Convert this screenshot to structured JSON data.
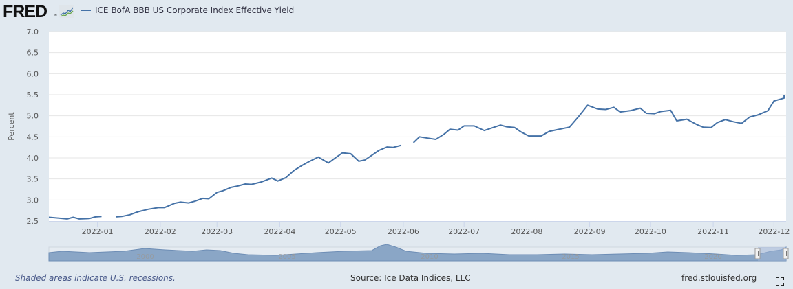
{
  "header": {
    "logo_text": "FRED",
    "logo_reg": "®",
    "logo_icon": "line-chart-icon",
    "series_label": "ICE BofA BBB US Corporate Index Effective Yield",
    "series_color": "#4572a7"
  },
  "footer": {
    "recession_note": "Shaded areas indicate U.S. recessions.",
    "source": "Source: Ice Data Indices, LLC",
    "site": "fred.stlouisfed.org",
    "fullscreen_icon": "fullscreen-icon"
  },
  "navigator": {
    "year_labels": [
      "2000",
      "2005",
      "2010",
      "2015",
      "2020"
    ],
    "handle_icon": "drag-handle-icon"
  },
  "chart_data": {
    "type": "line",
    "title": "ICE BofA BBB US Corporate Index Effective Yield",
    "xlabel": "",
    "ylabel": "Percent",
    "ylim": [
      2.5,
      7.0
    ],
    "yticks": [
      "2.5",
      "3.0",
      "3.5",
      "4.0",
      "4.5",
      "5.0",
      "5.5",
      "6.0",
      "6.5",
      "7.0"
    ],
    "xticks": [
      "2022-01",
      "2022-02",
      "2022-03",
      "2022-04",
      "2022-05",
      "2022-06",
      "2022-07",
      "2022-08",
      "2022-09",
      "2022-10",
      "2022-11",
      "2022-12"
    ],
    "grid": true,
    "legend_position": "top-left",
    "series": [
      {
        "name": "ICE BofA BBB US Corporate Index Effective Yield",
        "color": "#4572a7",
        "points": [
          [
            "2021-12-08",
            2.59
          ],
          [
            "2021-12-13",
            2.57
          ],
          [
            "2021-12-17",
            2.55
          ],
          [
            "2021-12-20",
            2.59
          ],
          [
            "2021-12-23",
            2.55
          ],
          [
            "2021-12-28",
            2.56
          ],
          [
            "2021-12-31",
            2.6
          ],
          [
            "2022-01-03",
            2.61
          ],
          null,
          [
            "2022-01-10",
            2.6
          ],
          [
            "2022-01-13",
            2.61
          ],
          [
            "2022-01-17",
            2.65
          ],
          [
            "2022-01-21",
            2.72
          ],
          [
            "2022-01-26",
            2.78
          ],
          [
            "2022-01-31",
            2.82
          ],
          [
            "2022-02-03",
            2.82
          ],
          [
            "2022-02-08",
            2.92
          ],
          [
            "2022-02-11",
            2.95
          ],
          [
            "2022-02-15",
            2.93
          ],
          [
            "2022-02-18",
            2.97
          ],
          [
            "2022-02-22",
            3.04
          ],
          [
            "2022-02-25",
            3.03
          ],
          [
            "2022-03-01",
            3.18
          ],
          [
            "2022-03-04",
            3.22
          ],
          [
            "2022-03-08",
            3.3
          ],
          [
            "2022-03-11",
            3.33
          ],
          [
            "2022-03-15",
            3.38
          ],
          [
            "2022-03-18",
            3.37
          ],
          [
            "2022-03-23",
            3.43
          ],
          [
            "2022-03-28",
            3.52
          ],
          [
            "2022-03-31",
            3.45
          ],
          [
            "2022-04-04",
            3.53
          ],
          [
            "2022-04-08",
            3.7
          ],
          [
            "2022-04-12",
            3.82
          ],
          [
            "2022-04-15",
            3.9
          ],
          [
            "2022-04-20",
            4.02
          ],
          [
            "2022-04-25",
            3.88
          ],
          [
            "2022-04-29",
            4.02
          ],
          [
            "2022-05-02",
            4.12
          ],
          [
            "2022-05-06",
            4.1
          ],
          [
            "2022-05-10",
            3.92
          ],
          [
            "2022-05-13",
            3.95
          ],
          [
            "2022-05-17",
            4.08
          ],
          [
            "2022-05-20",
            4.18
          ],
          [
            "2022-05-24",
            4.26
          ],
          [
            "2022-05-27",
            4.25
          ],
          [
            "2022-05-31",
            4.3
          ],
          null,
          [
            "2022-06-06",
            4.36
          ],
          [
            "2022-06-09",
            4.5
          ],
          [
            "2022-06-13",
            4.47
          ],
          [
            "2022-06-17",
            4.44
          ],
          [
            "2022-06-21",
            4.56
          ],
          [
            "2022-06-24",
            4.68
          ],
          [
            "2022-06-28",
            4.66
          ],
          [
            "2022-07-01",
            4.76
          ],
          [
            "2022-07-06",
            4.76
          ],
          [
            "2022-07-11",
            4.65
          ],
          [
            "2022-07-14",
            4.7
          ],
          [
            "2022-07-19",
            4.78
          ],
          [
            "2022-07-22",
            4.74
          ],
          [
            "2022-07-26",
            4.72
          ],
          [
            "2022-07-29",
            4.62
          ],
          [
            "2022-08-02",
            4.52
          ],
          [
            "2022-08-08",
            4.52
          ],
          [
            "2022-08-12",
            4.63
          ],
          [
            "2022-08-16",
            4.67
          ],
          [
            "2022-08-22",
            4.73
          ],
          [
            "2022-08-26",
            4.95
          ],
          [
            "2022-08-31",
            5.25
          ],
          [
            "2022-09-05",
            5.16
          ],
          [
            "2022-09-09",
            5.15
          ],
          [
            "2022-09-13",
            5.2
          ],
          [
            "2022-09-16",
            5.09
          ],
          [
            "2022-09-21",
            5.12
          ],
          [
            "2022-09-26",
            5.18
          ],
          [
            "2022-09-29",
            5.06
          ],
          [
            "2022-10-03",
            5.05
          ],
          [
            "2022-10-06",
            5.1
          ],
          [
            "2022-10-11",
            5.13
          ],
          [
            "2022-10-14",
            4.88
          ],
          [
            "2022-10-19",
            4.92
          ],
          [
            "2022-10-24",
            4.79
          ],
          [
            "2022-10-27",
            4.73
          ],
          [
            "2022-10-31",
            4.72
          ],
          [
            "2022-11-03",
            4.84
          ],
          [
            "2022-11-07",
            4.91
          ],
          [
            "2022-11-11",
            4.86
          ],
          [
            "2022-11-15",
            4.82
          ],
          [
            "2022-11-19",
            4.97
          ],
          [
            "2022-11-23",
            5.02
          ],
          [
            "2022-11-28",
            5.12
          ],
          [
            "2022-12-01",
            5.35
          ],
          [
            "2022-12-06",
            5.42
          ],
          [
            "2022-12-06",
            5.5
          ]
        ]
      }
    ]
  }
}
